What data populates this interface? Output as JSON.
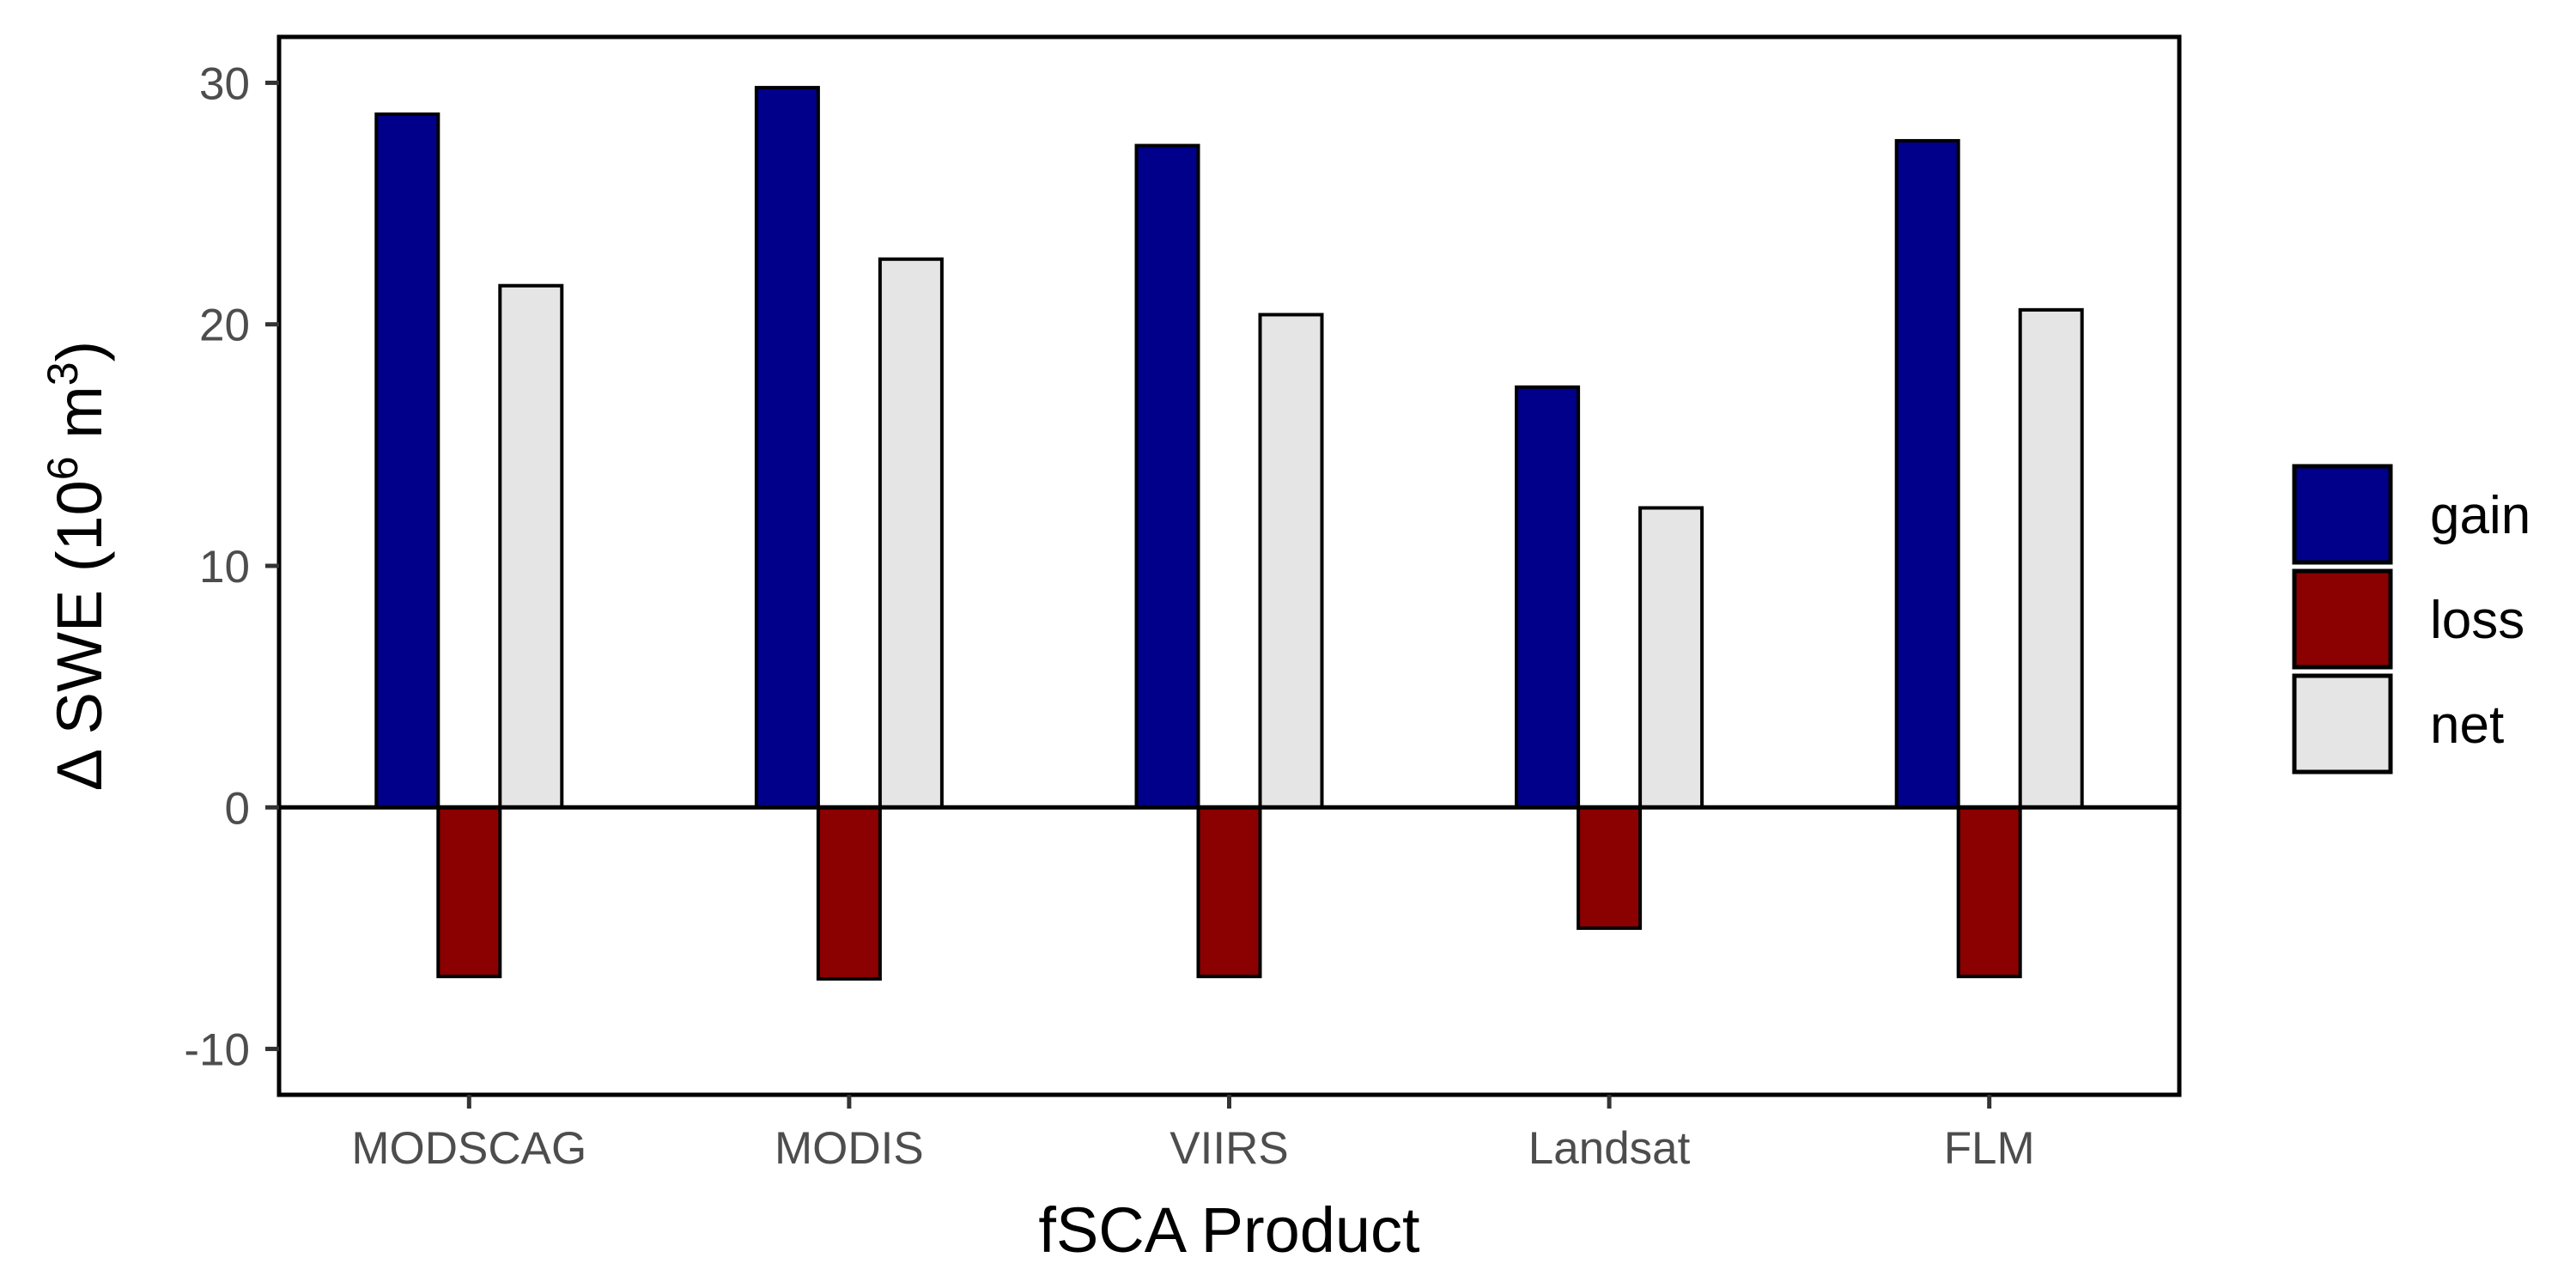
{
  "chart_data": {
    "type": "bar",
    "categories": [
      "MODSCAG",
      "MODIS",
      "VIIRS",
      "Landsat",
      "FLM"
    ],
    "series": [
      {
        "name": "gain",
        "values": [
          28.7,
          29.8,
          27.4,
          17.4,
          27.6
        ],
        "color": "#00008B"
      },
      {
        "name": "loss",
        "values": [
          -7.0,
          -7.1,
          -7.0,
          -5.0,
          -7.0
        ],
        "color": "#8B0000"
      },
      {
        "name": "net",
        "values": [
          21.6,
          22.7,
          20.4,
          12.4,
          20.6
        ],
        "color": "#E5E5E5"
      }
    ],
    "xlabel": "fSCA Product",
    "ylabel": {
      "prefix": "Δ SWE (10",
      "sup1": "6",
      "middle": " m",
      "sup2": "3",
      "suffix": ")"
    },
    "yticks": [
      -10,
      0,
      10,
      20,
      30
    ],
    "ylim": [
      -11.9,
      31.9
    ],
    "zero_line": true,
    "grid": false,
    "legend_position": "right"
  }
}
